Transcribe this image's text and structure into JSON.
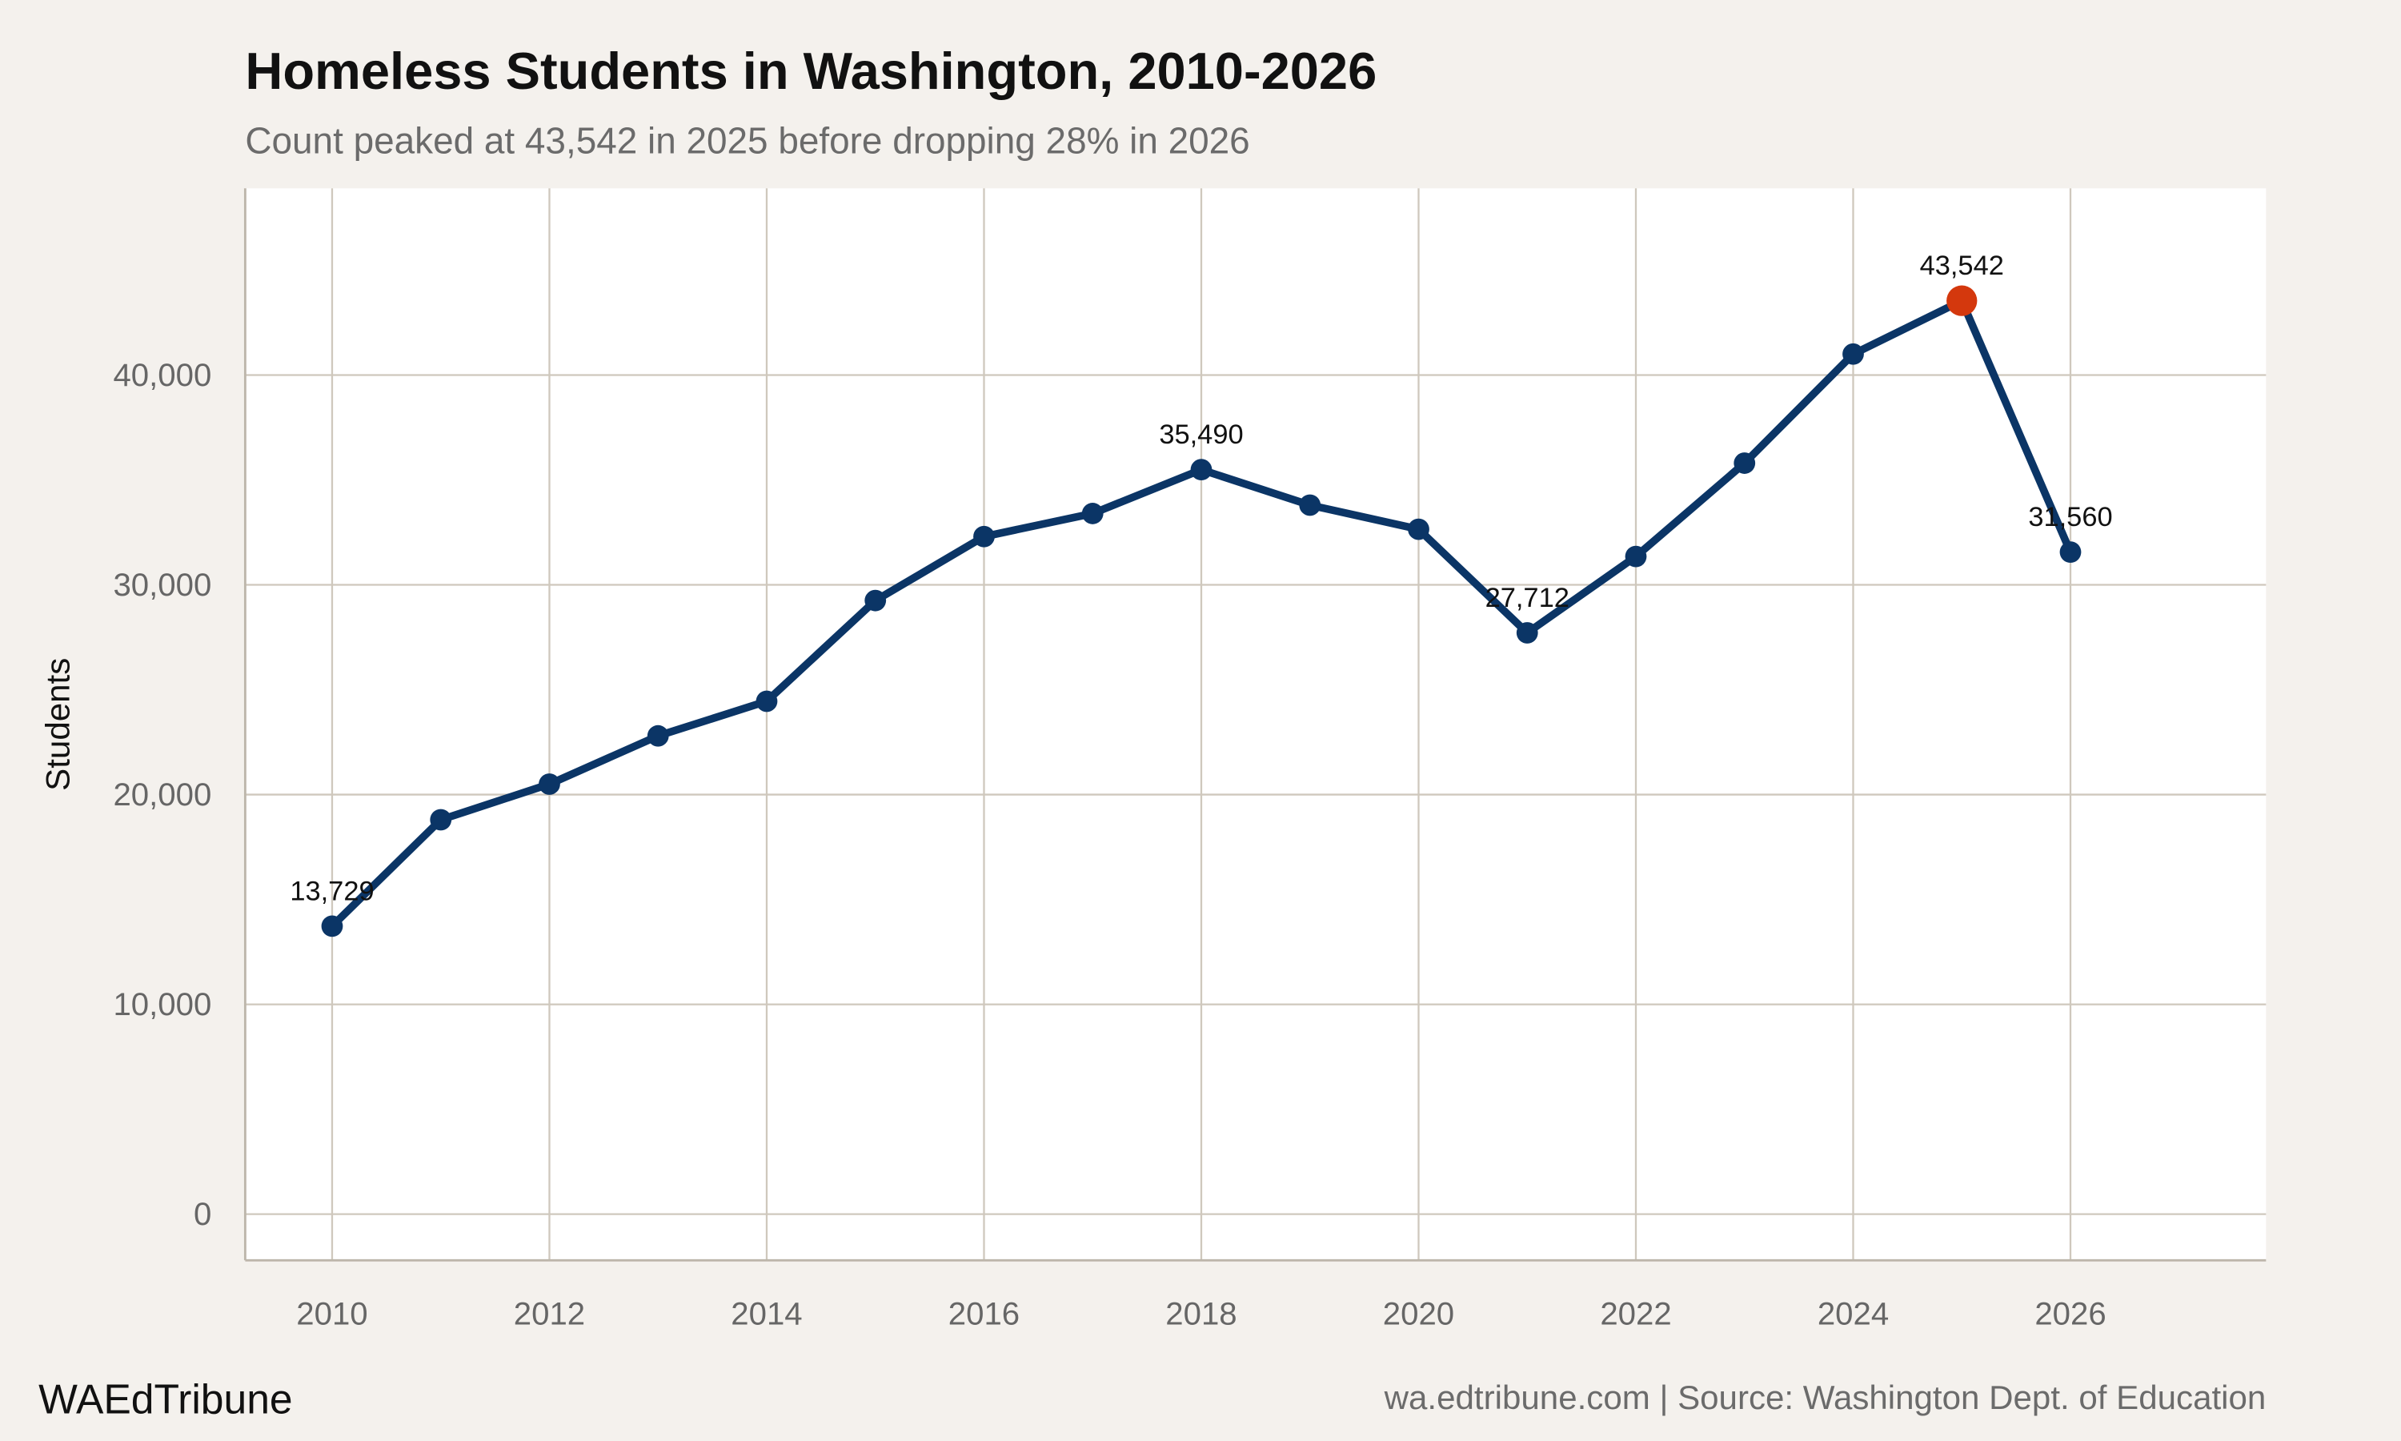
{
  "chart_data": {
    "type": "line",
    "title": "Homeless Students in Washington, 2010-2026",
    "subtitle": "Count peaked at 43,542 in 2025 before dropping 28% in 2026",
    "xlabel": "",
    "ylabel": "Students",
    "x": [
      2010,
      2011,
      2012,
      2013,
      2014,
      2015,
      2016,
      2017,
      2018,
      2019,
      2020,
      2021,
      2022,
      2023,
      2024,
      2025,
      2026
    ],
    "values": [
      13729,
      18800,
      20500,
      22800,
      24450,
      29250,
      32300,
      33400,
      35490,
      33800,
      32650,
      27712,
      31350,
      35800,
      41000,
      43542,
      31560
    ],
    "xlim": [
      2009.2,
      2027.8
    ],
    "ylim": [
      -2200,
      48900
    ],
    "x_ticks": [
      2010,
      2012,
      2014,
      2016,
      2018,
      2020,
      2022,
      2024,
      2026
    ],
    "x_tick_labels": [
      "2010",
      "2012",
      "2014",
      "2016",
      "2018",
      "2020",
      "2022",
      "2024",
      "2026"
    ],
    "y_ticks": [
      0,
      10000,
      20000,
      30000,
      40000
    ],
    "y_tick_labels": [
      "0",
      "10,000",
      "20,000",
      "30,000",
      "40,000"
    ],
    "annotations": [
      {
        "x": 2010,
        "label": "13,729"
      },
      {
        "x": 2018,
        "label": "35,490"
      },
      {
        "x": 2021,
        "label": "27,712"
      },
      {
        "x": 2025,
        "label": "43,542"
      },
      {
        "x": 2026,
        "label": "31,560"
      }
    ],
    "highlight": {
      "x": 2025,
      "color": "#d4380d"
    },
    "line_color": "#0b3566",
    "grid": true,
    "legend": "none"
  },
  "footer": {
    "brand": "WAEdTribune",
    "source": "wa.edtribune.com | Source: Washington Dept. of Education"
  },
  "colors": {
    "background": "#f4f1ed",
    "panel": "#ffffff",
    "grid": "#cfc8bd"
  }
}
